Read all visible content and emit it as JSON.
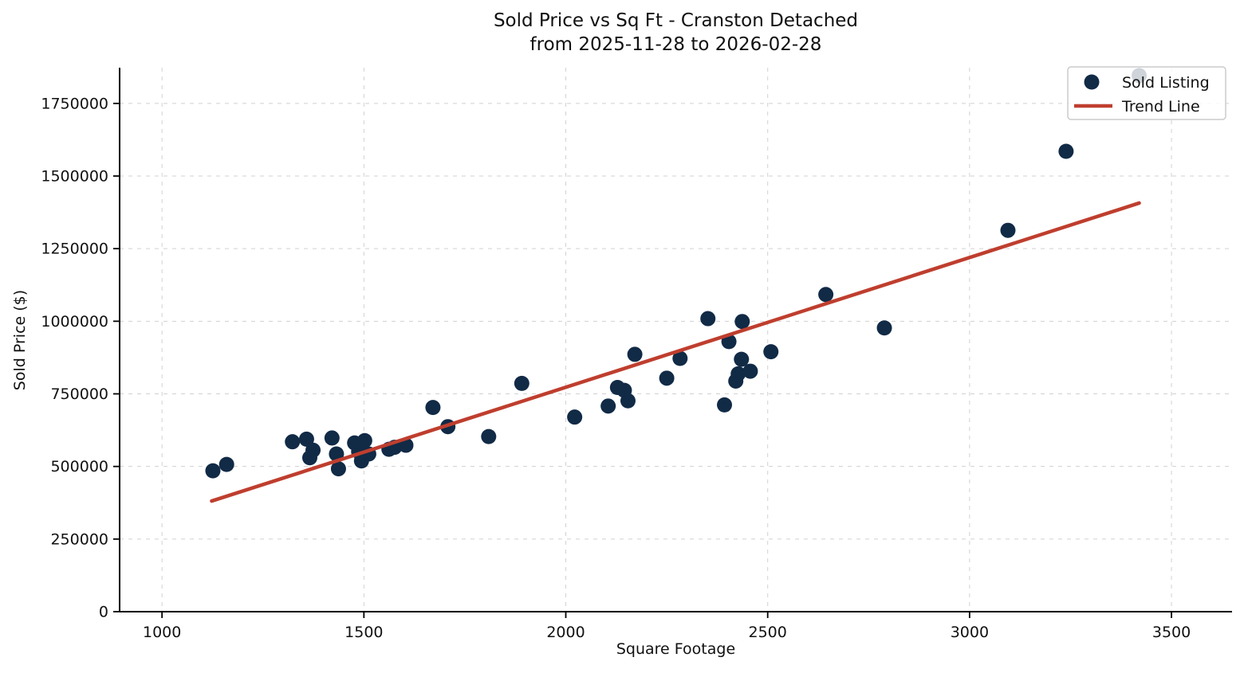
{
  "chart_data": {
    "type": "scatter",
    "title": "Sold Price vs Sq Ft - Cranston Detached",
    "subtitle": "from 2025-11-28 to 2026-02-28",
    "xlabel": "Square Footage",
    "ylabel": "Sold Price ($)",
    "xlim": [
      895,
      3650
    ],
    "ylim": [
      0,
      1873000
    ],
    "x_ticks": [
      1000,
      1500,
      2000,
      2500,
      3000,
      3500
    ],
    "y_ticks": [
      0,
      250000,
      500000,
      750000,
      1000000,
      1250000,
      1500000,
      1750000
    ],
    "grid": true,
    "legend_position": "top-right",
    "series": [
      {
        "name": "Sold Listing",
        "type": "scatter",
        "color": "#112a46",
        "points": [
          [
            1126,
            485000
          ],
          [
            1160,
            507000
          ],
          [
            1323,
            585000
          ],
          [
            1358,
            594000
          ],
          [
            1374,
            556000
          ],
          [
            1366,
            530000
          ],
          [
            1421,
            598000
          ],
          [
            1432,
            543000
          ],
          [
            1437,
            492000
          ],
          [
            1477,
            581000
          ],
          [
            1502,
            589000
          ],
          [
            1487,
            551000
          ],
          [
            1494,
            519000
          ],
          [
            1512,
            543000
          ],
          [
            1562,
            559000
          ],
          [
            1576,
            566000
          ],
          [
            1604,
            573000
          ],
          [
            1671,
            703000
          ],
          [
            1708,
            637000
          ],
          [
            1809,
            603000
          ],
          [
            1891,
            786000
          ],
          [
            2022,
            670000
          ],
          [
            2105,
            708000
          ],
          [
            2128,
            772000
          ],
          [
            2145,
            762000
          ],
          [
            2154,
            726000
          ],
          [
            2171,
            886000
          ],
          [
            2250,
            804000
          ],
          [
            2283,
            872000
          ],
          [
            2352,
            1009000
          ],
          [
            2393,
            712000
          ],
          [
            2404,
            930000
          ],
          [
            2421,
            794000
          ],
          [
            2427,
            819000
          ],
          [
            2435,
            869000
          ],
          [
            2437,
            999000
          ],
          [
            2457,
            828000
          ],
          [
            2508,
            895000
          ],
          [
            2644,
            1092000
          ],
          [
            2789,
            977000
          ],
          [
            3095,
            1313000
          ],
          [
            3239,
            1585000
          ],
          [
            3420,
            1846000
          ]
        ]
      },
      {
        "name": "Trend Line",
        "type": "line",
        "color": "#bf3e2e",
        "points": [
          [
            1123,
            381000
          ],
          [
            3420,
            1407000
          ]
        ]
      }
    ]
  },
  "colors": {
    "background": "#ffffff",
    "scatter_dot": "#112a46",
    "trend_line": "#bf3e2e",
    "gridline": "#c9c9c9",
    "axis": "#000000",
    "legend_border": "#cccccc"
  }
}
